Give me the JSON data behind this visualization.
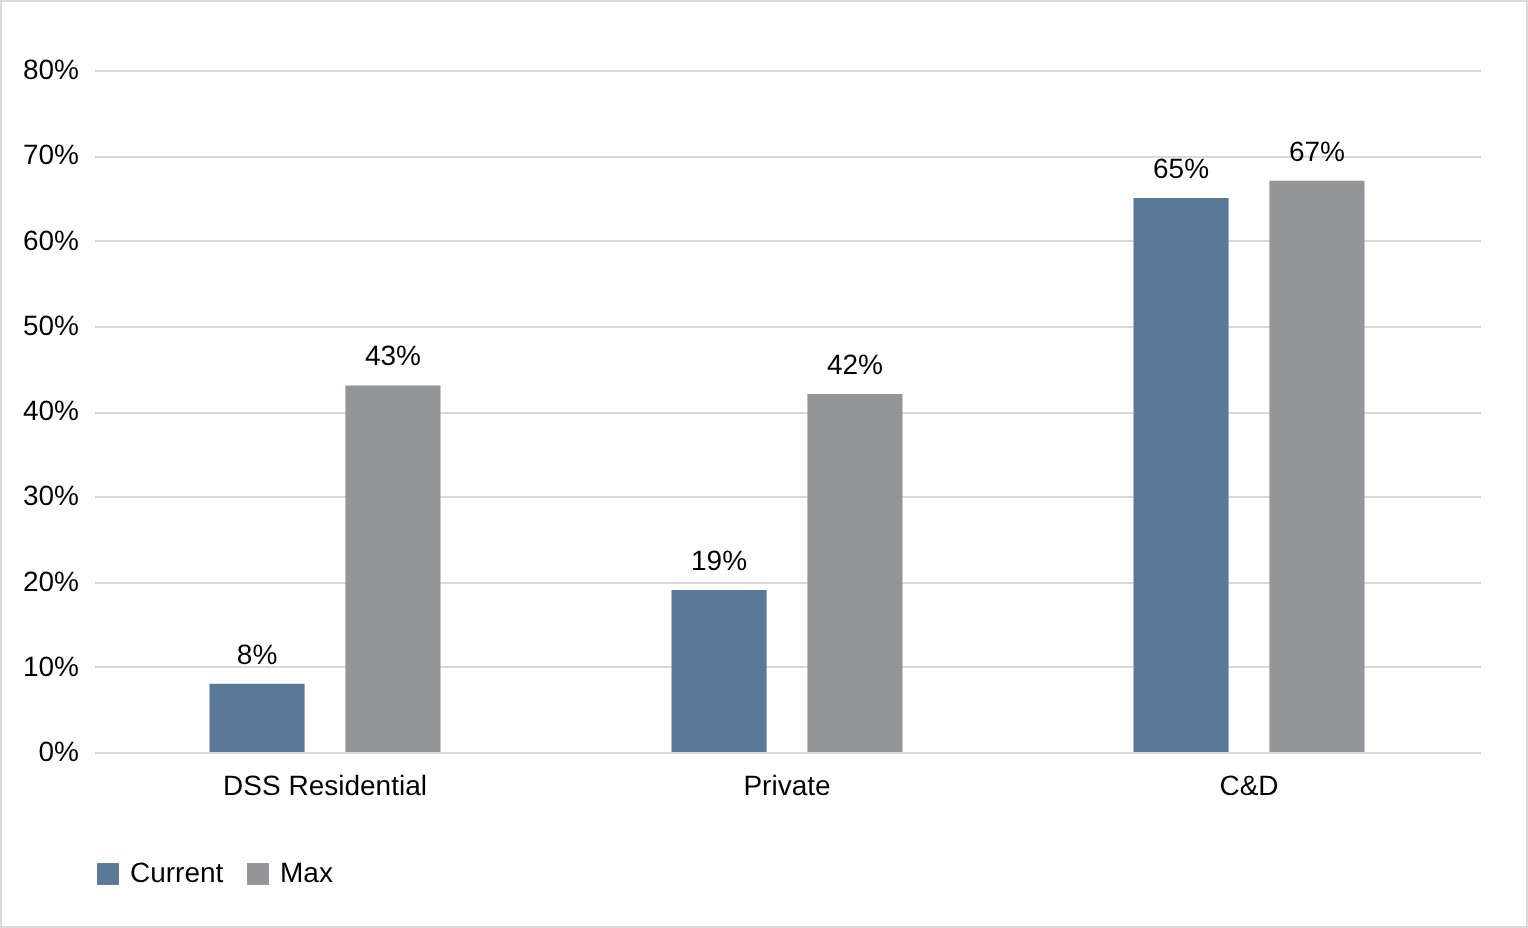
{
  "chart_data": {
    "type": "bar",
    "categories": [
      "DSS Residential",
      "Private",
      "C&D"
    ],
    "series": [
      {
        "name": "Current",
        "color": "#5a7898",
        "values": [
          8,
          19,
          65
        ],
        "value_labels": [
          "8%",
          "19%",
          "65%"
        ]
      },
      {
        "name": "Max",
        "color": "#939598",
        "values": [
          43,
          42,
          67
        ],
        "value_labels": [
          "43%",
          "42%",
          "67%"
        ]
      }
    ],
    "ylim": [
      0,
      80
    ],
    "yticks": [
      {
        "value": 0,
        "label": "0%"
      },
      {
        "value": 10,
        "label": "10%"
      },
      {
        "value": 20,
        "label": "20%"
      },
      {
        "value": 30,
        "label": "30%"
      },
      {
        "value": 40,
        "label": "40%"
      },
      {
        "value": 50,
        "label": "50%"
      },
      {
        "value": 60,
        "label": "60%"
      },
      {
        "value": 70,
        "label": "70%"
      },
      {
        "value": 80,
        "label": "80%"
      }
    ],
    "grid": "y",
    "legend": "bottom"
  }
}
